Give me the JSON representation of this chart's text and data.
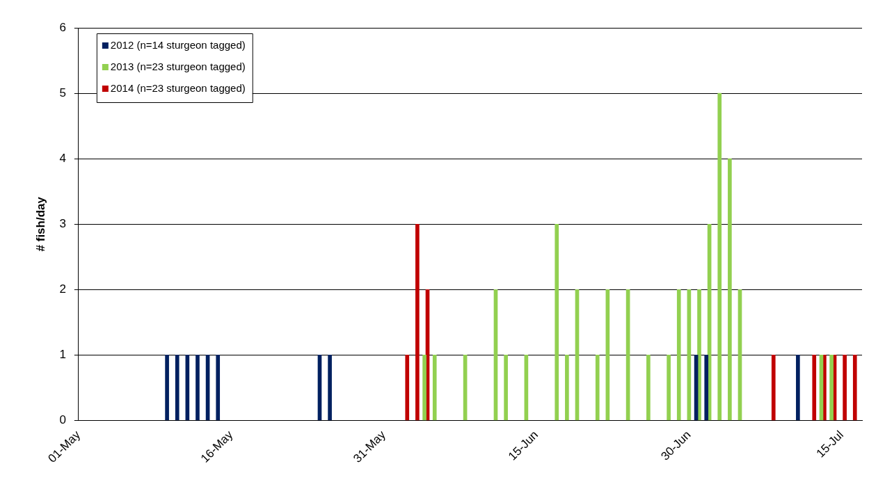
{
  "chart_data": {
    "type": "bar",
    "ylabel": "# fish/day",
    "ylim": [
      0,
      6
    ],
    "yticks": [
      0,
      1,
      2,
      3,
      4,
      5,
      6
    ],
    "xlim": [
      "--05-01",
      "--07-17"
    ],
    "xticks": [
      {
        "value": "--05-01",
        "label": "01-May"
      },
      {
        "value": "--05-16",
        "label": "16-May"
      },
      {
        "value": "--05-31",
        "label": "31-May"
      },
      {
        "value": "--06-15",
        "label": "15-Jun"
      },
      {
        "value": "--06-30",
        "label": "30-Jun"
      },
      {
        "value": "--07-15",
        "label": "15-Jul"
      }
    ],
    "grid": "y",
    "legend": "top left",
    "series": [
      {
        "name": "2012 (n=14 sturgeon tagged)",
        "color": "#002060",
        "x": [
          "--05-10",
          "--05-11",
          "--05-12",
          "--05-13",
          "--05-14",
          "--05-15",
          "--05-25",
          "--05-26",
          "--07-01",
          "--07-02",
          "--07-11"
        ],
        "values": [
          1,
          1,
          1,
          1,
          1,
          1,
          1,
          1,
          1,
          1,
          1
        ]
      },
      {
        "name": "2013 (n=23 sturgeon tagged)",
        "color": "#92d050",
        "x": [
          "--06-04",
          "--06-05",
          "--06-08",
          "--06-11",
          "--06-12",
          "--06-14",
          "--06-17",
          "--06-18",
          "--06-19",
          "--06-21",
          "--06-22",
          "--06-24",
          "--06-26",
          "--06-28",
          "--06-29",
          "--06-30",
          "--07-01",
          "--07-02",
          "--07-03",
          "--07-04",
          "--07-05",
          "--07-13",
          "--07-14"
        ],
        "values": [
          1,
          1,
          1,
          2,
          1,
          1,
          3,
          1,
          2,
          1,
          2,
          2,
          1,
          1,
          2,
          2,
          2,
          3,
          5,
          4,
          2,
          1,
          1
        ]
      },
      {
        "name": "2014 (n=23 sturgeon tagged)",
        "color": "#c00000",
        "x": [
          "--06-02",
          "--06-03",
          "--06-04",
          "--07-08",
          "--07-12",
          "--07-13",
          "--07-14",
          "--07-15",
          "--07-16"
        ],
        "values": [
          1,
          3,
          2,
          1,
          1,
          1,
          1,
          1,
          1
        ]
      }
    ]
  }
}
